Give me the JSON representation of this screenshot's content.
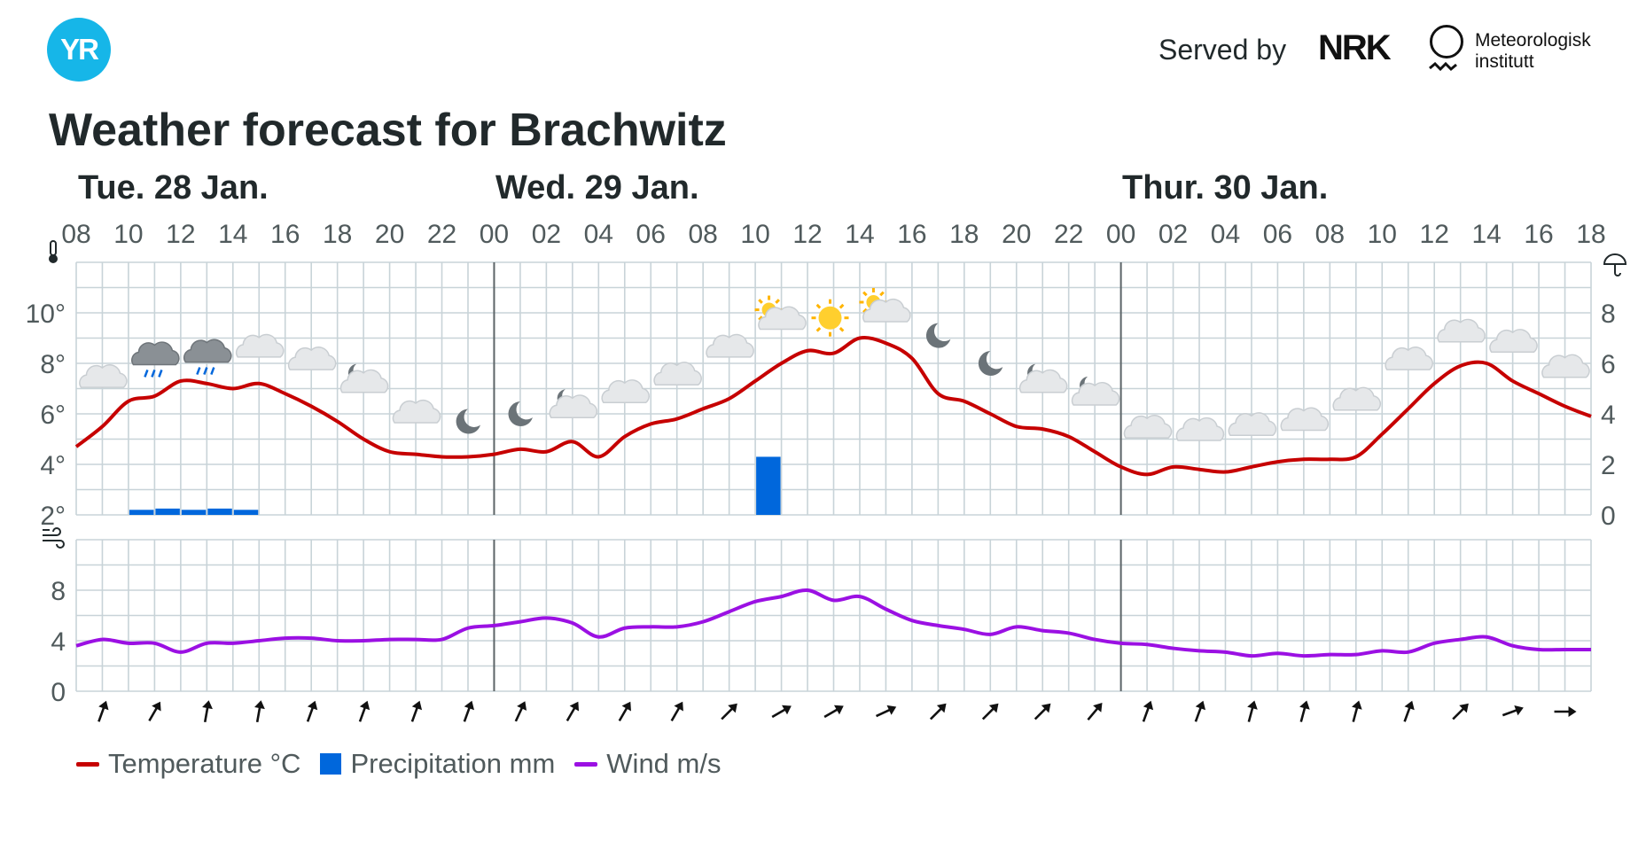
{
  "header": {
    "logo_text": "YR",
    "served_by": "Served by",
    "nrk_logo": "NRK",
    "met_line1": "Meteorologisk",
    "met_line2": "institutt"
  },
  "title": "Weather forecast for Brachwitz",
  "legend": {
    "temperature": "Temperature °C",
    "precipitation": "Precipitation mm",
    "wind": "Wind m/s"
  },
  "colors": {
    "temperature": "#c60000",
    "precipitation": "#0067dc",
    "wind": "#9b10e3",
    "grid": "#c8d3d8",
    "day_separator": "#5d6568"
  },
  "chart_data": {
    "type": "line",
    "days": [
      "Tue. 28 Jan.",
      "Wed. 29 Jan.",
      "Thur. 30 Jan."
    ],
    "x_labels": [
      "08",
      "10",
      "12",
      "14",
      "16",
      "18",
      "20",
      "22",
      "00",
      "02",
      "04",
      "06",
      "08",
      "10",
      "12",
      "14",
      "16",
      "18",
      "20",
      "22",
      "00",
      "02",
      "04",
      "06",
      "08",
      "10",
      "12",
      "14",
      "16",
      "18"
    ],
    "temperature_axis": {
      "ticks": [
        2,
        4,
        6,
        8,
        10
      ],
      "tick_labels": [
        "2°",
        "4°",
        "6°",
        "8°",
        "10°"
      ],
      "ylim": [
        2,
        12
      ]
    },
    "precipitation_axis": {
      "ticks": [
        0,
        2,
        4,
        6,
        8
      ],
      "ylim": [
        0,
        10
      ]
    },
    "wind_axis": {
      "ticks": [
        0,
        4,
        8
      ],
      "ylim": [
        0,
        12
      ]
    },
    "temperature": [
      [
        0,
        4.7
      ],
      [
        1,
        5.5
      ],
      [
        2,
        6.5
      ],
      [
        3,
        6.7
      ],
      [
        4,
        7.3
      ],
      [
        5,
        7.2
      ],
      [
        6,
        7.0
      ],
      [
        7,
        7.2
      ],
      [
        8,
        6.8
      ],
      [
        9,
        6.3
      ],
      [
        10,
        5.7
      ],
      [
        11,
        5.0
      ],
      [
        12,
        4.5
      ],
      [
        13,
        4.4
      ],
      [
        14,
        4.3
      ],
      [
        15,
        4.3
      ],
      [
        16,
        4.4
      ],
      [
        17,
        4.6
      ],
      [
        18,
        4.5
      ],
      [
        19,
        4.9
      ],
      [
        20,
        4.3
      ],
      [
        21,
        5.1
      ],
      [
        22,
        5.6
      ],
      [
        23,
        5.8
      ],
      [
        24,
        6.2
      ],
      [
        25,
        6.6
      ],
      [
        26,
        7.3
      ],
      [
        27,
        8.0
      ],
      [
        28,
        8.5
      ],
      [
        29,
        8.4
      ],
      [
        30,
        9.0
      ],
      [
        31,
        8.8
      ],
      [
        32,
        8.2
      ],
      [
        33,
        6.8
      ],
      [
        34,
        6.5
      ],
      [
        35,
        6.0
      ],
      [
        36,
        5.5
      ],
      [
        37,
        5.4
      ],
      [
        38,
        5.1
      ],
      [
        39,
        4.5
      ],
      [
        40,
        3.9
      ],
      [
        41,
        3.6
      ],
      [
        42,
        3.9
      ],
      [
        43,
        3.8
      ],
      [
        44,
        3.7
      ],
      [
        45,
        3.9
      ],
      [
        46,
        4.1
      ],
      [
        47,
        4.2
      ],
      [
        48,
        4.2
      ],
      [
        49,
        4.3
      ],
      [
        50,
        5.2
      ],
      [
        51,
        6.2
      ],
      [
        52,
        7.2
      ],
      [
        53,
        7.9
      ],
      [
        54,
        8.0
      ],
      [
        55,
        7.3
      ],
      [
        56,
        6.8
      ],
      [
        57,
        6.3
      ],
      [
        58,
        5.9
      ]
    ],
    "precipitation": [
      [
        2,
        0.2
      ],
      [
        3,
        0.25
      ],
      [
        4,
        0.2
      ],
      [
        5,
        0.25
      ],
      [
        6,
        0.2
      ],
      [
        26,
        2.3
      ]
    ],
    "wind": [
      [
        0,
        3.6
      ],
      [
        1,
        4.1
      ],
      [
        2,
        3.8
      ],
      [
        3,
        3.8
      ],
      [
        4,
        3.1
      ],
      [
        5,
        3.8
      ],
      [
        6,
        3.8
      ],
      [
        7,
        4.0
      ],
      [
        8,
        4.2
      ],
      [
        9,
        4.2
      ],
      [
        10,
        4.0
      ],
      [
        11,
        4.0
      ],
      [
        12,
        4.1
      ],
      [
        13,
        4.1
      ],
      [
        14,
        4.1
      ],
      [
        15,
        5.0
      ],
      [
        16,
        5.2
      ],
      [
        17,
        5.5
      ],
      [
        18,
        5.8
      ],
      [
        19,
        5.4
      ],
      [
        20,
        4.3
      ],
      [
        21,
        5.0
      ],
      [
        22,
        5.1
      ],
      [
        23,
        5.1
      ],
      [
        24,
        5.5
      ],
      [
        25,
        6.3
      ],
      [
        26,
        7.1
      ],
      [
        27,
        7.5
      ],
      [
        28,
        8.0
      ],
      [
        29,
        7.2
      ],
      [
        30,
        7.5
      ],
      [
        31,
        6.5
      ],
      [
        32,
        5.6
      ],
      [
        33,
        5.2
      ],
      [
        34,
        4.9
      ],
      [
        35,
        4.5
      ],
      [
        36,
        5.1
      ],
      [
        37,
        4.8
      ],
      [
        38,
        4.6
      ],
      [
        39,
        4.1
      ],
      [
        40,
        3.8
      ],
      [
        41,
        3.7
      ],
      [
        42,
        3.4
      ],
      [
        43,
        3.2
      ],
      [
        44,
        3.1
      ],
      [
        45,
        2.8
      ],
      [
        46,
        3.0
      ],
      [
        47,
        2.8
      ],
      [
        48,
        2.9
      ],
      [
        49,
        2.9
      ],
      [
        50,
        3.2
      ],
      [
        51,
        3.1
      ],
      [
        52,
        3.8
      ],
      [
        53,
        4.1
      ],
      [
        54,
        4.3
      ],
      [
        55,
        3.6
      ],
      [
        56,
        3.3
      ],
      [
        57,
        3.3
      ],
      [
        58,
        3.3
      ]
    ],
    "weather_icons": [
      {
        "slot": 1,
        "temp": 7.4,
        "symbol": "cloud"
      },
      {
        "slot": 3,
        "temp": 8.3,
        "symbol": "rain"
      },
      {
        "slot": 5,
        "temp": 8.4,
        "symbol": "rain"
      },
      {
        "slot": 7,
        "temp": 8.6,
        "symbol": "cloud"
      },
      {
        "slot": 9,
        "temp": 8.1,
        "symbol": "cloud"
      },
      {
        "slot": 11,
        "temp": 7.2,
        "symbol": "moon-cloud"
      },
      {
        "slot": 13,
        "temp": 6.0,
        "symbol": "cloud"
      },
      {
        "slot": 15,
        "temp": 5.7,
        "symbol": "moon"
      },
      {
        "slot": 17,
        "temp": 6.0,
        "symbol": "moon"
      },
      {
        "slot": 19,
        "temp": 6.2,
        "symbol": "moon-cloud"
      },
      {
        "slot": 21,
        "temp": 6.8,
        "symbol": "cloud"
      },
      {
        "slot": 23,
        "temp": 7.5,
        "symbol": "cloud"
      },
      {
        "slot": 25,
        "temp": 8.6,
        "symbol": "cloud"
      },
      {
        "slot": 27,
        "temp": 9.7,
        "symbol": "sun-cloud"
      },
      {
        "slot": 29,
        "temp": 9.8,
        "symbol": "sun"
      },
      {
        "slot": 31,
        "temp": 10.0,
        "symbol": "sun-cloud"
      },
      {
        "slot": 33,
        "temp": 9.1,
        "symbol": "moon"
      },
      {
        "slot": 35,
        "temp": 8.0,
        "symbol": "moon"
      },
      {
        "slot": 37,
        "temp": 7.2,
        "symbol": "moon-cloud"
      },
      {
        "slot": 39,
        "temp": 6.7,
        "symbol": "moon-cloud"
      },
      {
        "slot": 41,
        "temp": 5.4,
        "symbol": "cloud"
      },
      {
        "slot": 43,
        "temp": 5.3,
        "symbol": "cloud"
      },
      {
        "slot": 45,
        "temp": 5.5,
        "symbol": "cloud"
      },
      {
        "slot": 47,
        "temp": 5.7,
        "symbol": "cloud"
      },
      {
        "slot": 49,
        "temp": 6.5,
        "symbol": "cloud"
      },
      {
        "slot": 51,
        "temp": 8.1,
        "symbol": "cloud"
      },
      {
        "slot": 53,
        "temp": 9.2,
        "symbol": "cloud"
      },
      {
        "slot": 55,
        "temp": 8.8,
        "symbol": "cloud"
      },
      {
        "slot": 57,
        "temp": 7.8,
        "symbol": "cloud"
      }
    ],
    "wind_direction_deg": [
      20,
      30,
      10,
      10,
      20,
      20,
      20,
      20,
      25,
      30,
      30,
      30,
      45,
      60,
      60,
      65,
      45,
      45,
      45,
      40,
      20,
      20,
      15,
      15,
      15,
      20,
      45,
      70,
      90
    ],
    "grid": true
  }
}
